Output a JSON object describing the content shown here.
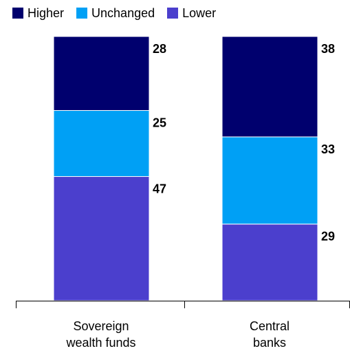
{
  "chart_data": {
    "type": "bar",
    "stacked": true,
    "categories": [
      "Sovereign wealth funds",
      "Central banks"
    ],
    "category_lines": [
      [
        "Sovereign",
        "wealth funds"
      ],
      [
        "Central",
        "banks"
      ]
    ],
    "series": [
      {
        "name": "Lower",
        "color": "#4b3fcd",
        "values": [
          47,
          29
        ]
      },
      {
        "name": "Unchanged",
        "color": "#00a0f5",
        "values": [
          25,
          33
        ]
      },
      {
        "name": "Higher",
        "color": "#00006e",
        "values": [
          28,
          38
        ]
      }
    ],
    "ylim": [
      0,
      100
    ],
    "legend_order": [
      "Higher",
      "Unchanged",
      "Lower"
    ],
    "legend_position": "top-left"
  }
}
